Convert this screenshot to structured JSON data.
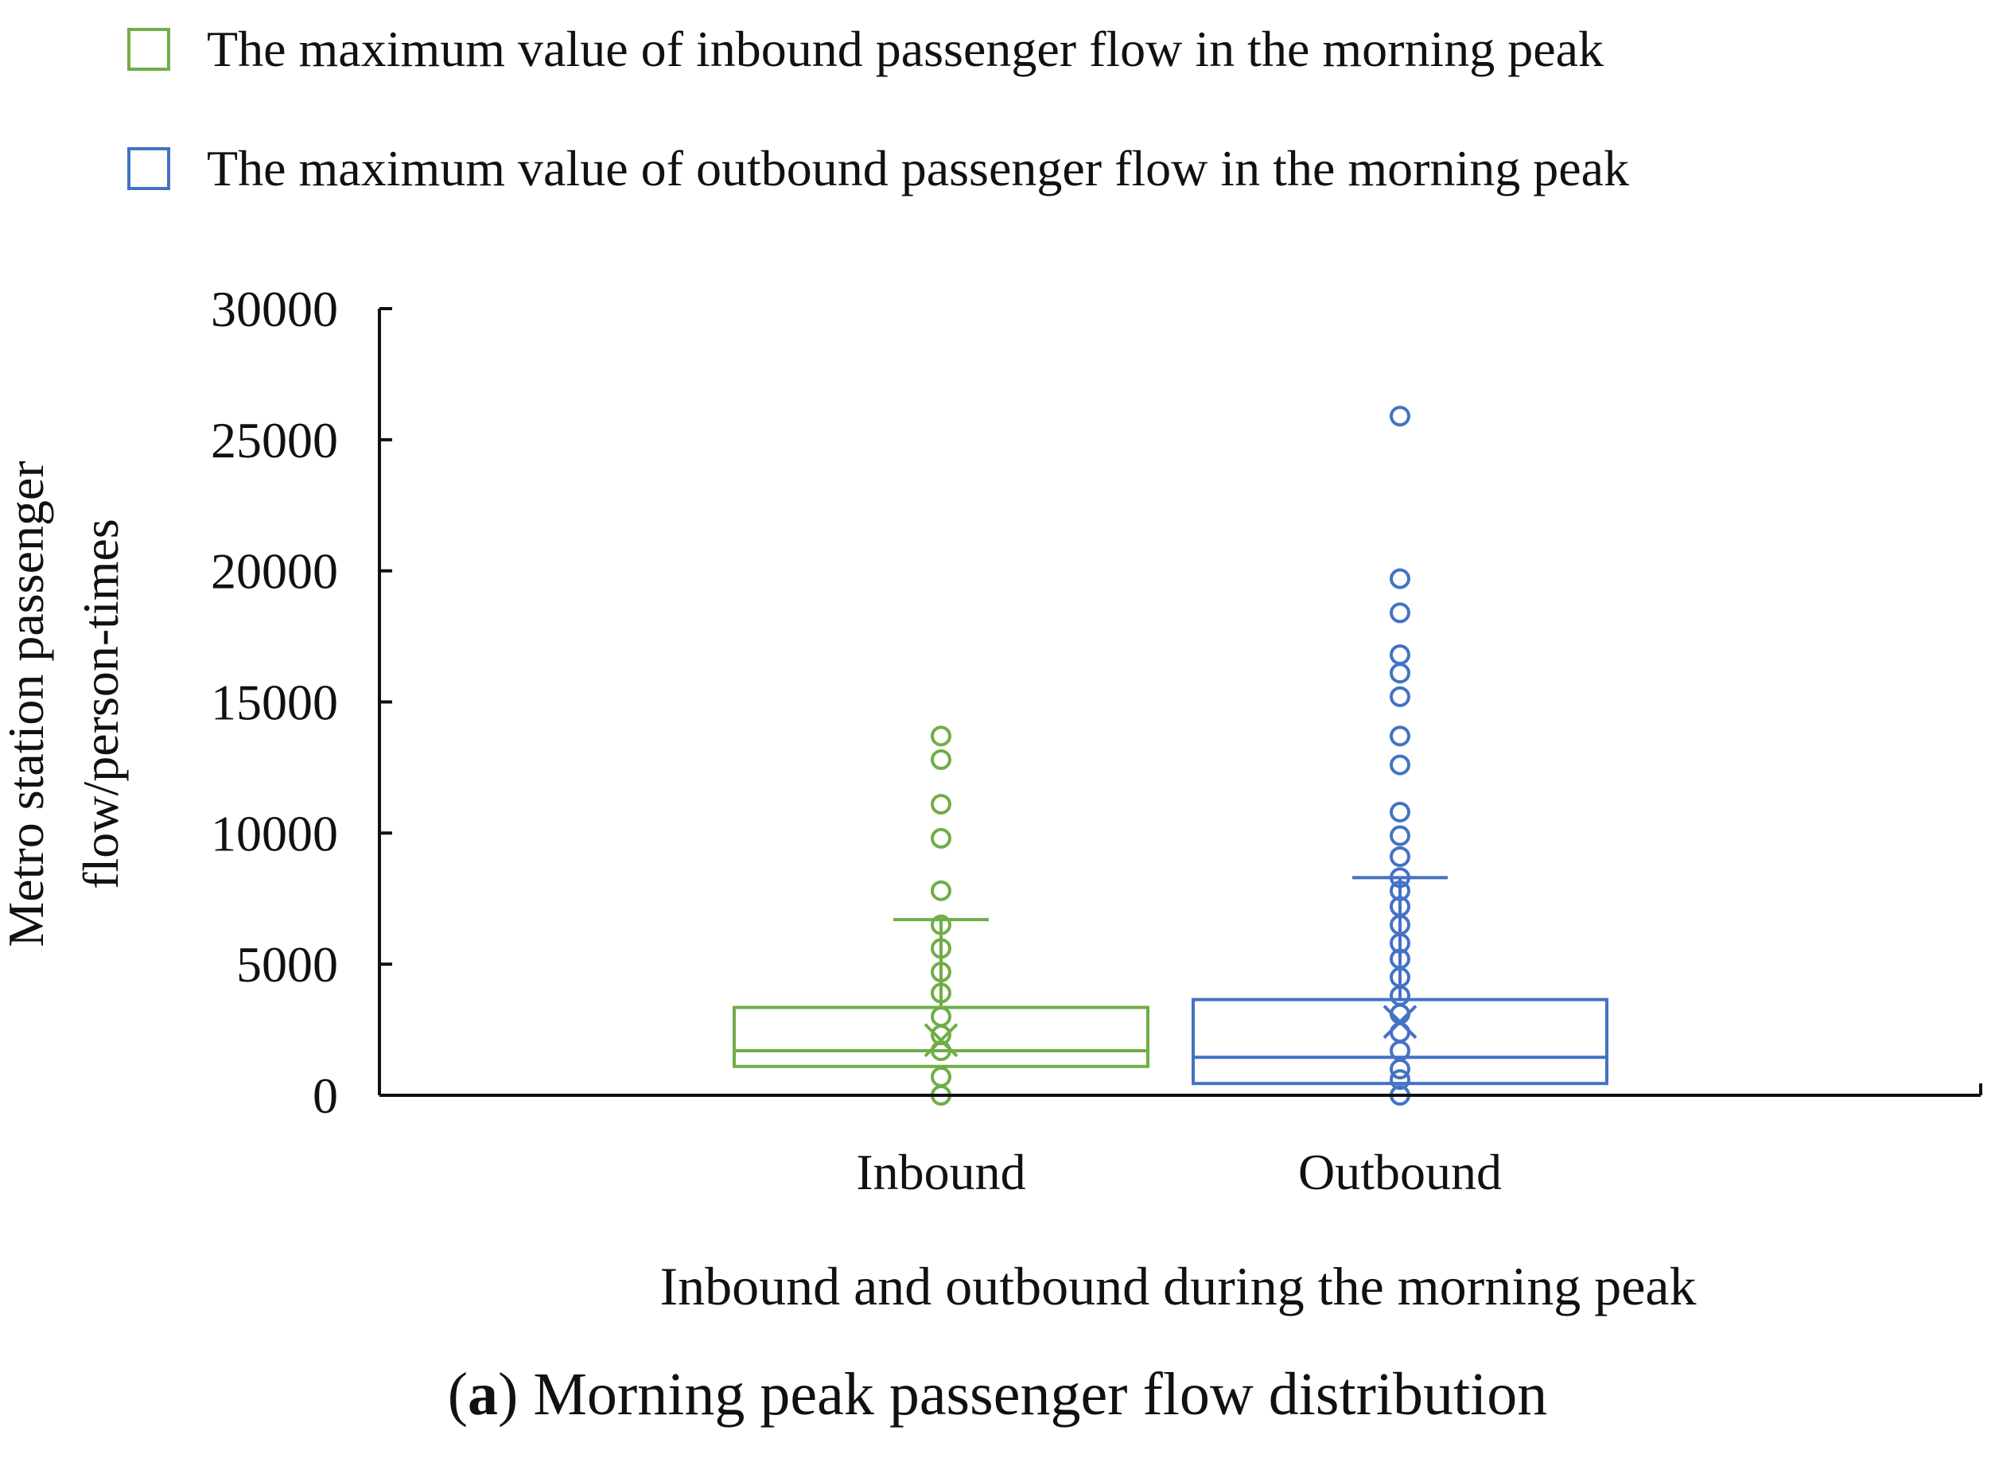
{
  "legend": [
    {
      "label": "The maximum value of inbound passenger flow in the morning peak",
      "color": "#70ad47"
    },
    {
      "label": "The maximum value of outbound passenger flow in the morning peak",
      "color": "#4472c4"
    }
  ],
  "caption": {
    "tag": "a",
    "text": "Morning peak passenger flow distribution"
  },
  "chart_data": {
    "type": "box",
    "title": "",
    "xlabel": "Inbound and outbound during the morning peak",
    "ylabel_lines": [
      "Metro station passenger",
      "flow/person-times"
    ],
    "ylim": [
      0,
      30000
    ],
    "yticks": [
      0,
      5000,
      10000,
      15000,
      20000,
      25000,
      30000
    ],
    "categories": [
      "Inbound",
      "Outbound"
    ],
    "series": [
      {
        "name": "The maximum value of inbound passenger flow in the morning peak",
        "category": "Inbound",
        "color": "#70ad47",
        "q1": 1100,
        "median": 1700,
        "q3": 3350,
        "whisker_low": 0,
        "whisker_high": 6700,
        "mean": 2100,
        "points": [
          0,
          700,
          1700,
          2300,
          3000,
          3900,
          4700,
          5600,
          6500,
          7800,
          9800,
          11100,
          12800,
          13700
        ]
      },
      {
        "name": "The maximum value of outbound passenger flow in the morning peak",
        "category": "Outbound",
        "color": "#4472c4",
        "q1": 450,
        "median": 1450,
        "q3": 3650,
        "whisker_low": 0,
        "whisker_high": 8300,
        "mean": 2800,
        "points": [
          0,
          600,
          1000,
          1700,
          2400,
          3100,
          3800,
          4500,
          5200,
          5800,
          6500,
          7200,
          7800,
          8300,
          9100,
          9900,
          10800,
          12600,
          13700,
          15200,
          16100,
          16800,
          18400,
          19700,
          25900
        ]
      }
    ]
  }
}
